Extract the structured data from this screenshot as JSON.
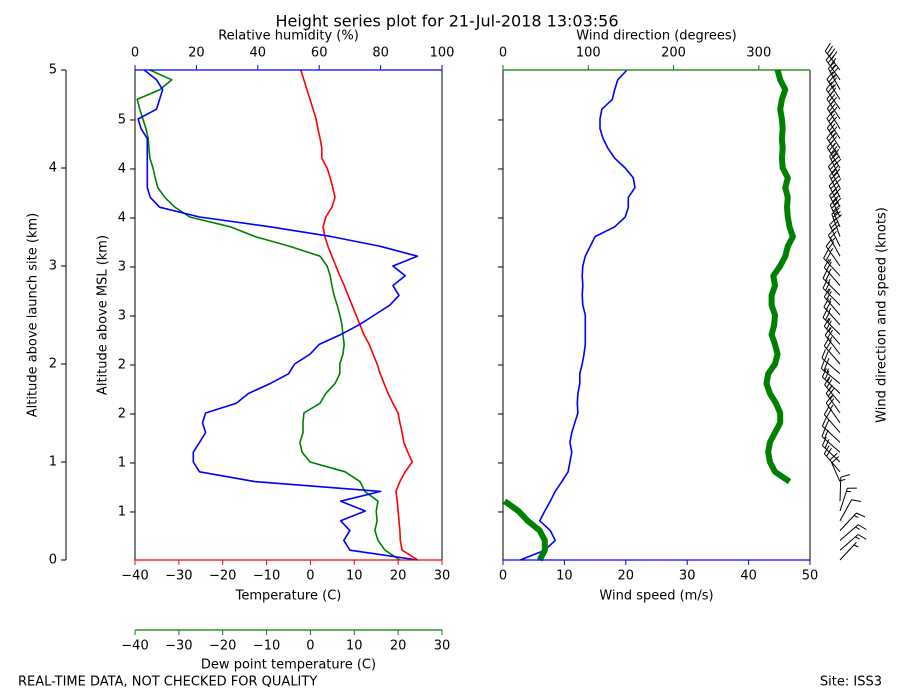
{
  "footer": {
    "left": "REAL-TIME DATA, NOT CHECKED FOR QUALITY",
    "right": "Site: ISS3"
  },
  "chart_data": [
    {
      "type": "line",
      "title": "Height series plot for 21-Jul-2018 13:03:56",
      "y": [
        0,
        0.1,
        0.2,
        0.3,
        0.4,
        0.5,
        0.6,
        0.7,
        0.8,
        0.9,
        1,
        1.1,
        1.2,
        1.3,
        1.4,
        1.5,
        1.6,
        1.7,
        1.8,
        1.9,
        2,
        2.1,
        2.2,
        2.3,
        2.4,
        2.5,
        2.6,
        2.7,
        2.8,
        2.9,
        3,
        3.1,
        3.2,
        3.3,
        3.4,
        3.5,
        3.6,
        3.7,
        3.8,
        3.9,
        4,
        4.1,
        4.2,
        4.3,
        4.4,
        4.5,
        4.6,
        4.7,
        4.8,
        4.9,
        5
      ],
      "series": [
        {
          "color": "#ff0000",
          "axis": "x",
          "values": [
            24.5,
            20.9,
            20.5,
            20.4,
            20.2,
            20.0,
            19.8,
            19.5,
            20.4,
            21.6,
            23.2,
            22.2,
            21.3,
            20.9,
            20.4,
            20.0,
            18.8,
            17.7,
            16.8,
            15.9,
            15.2,
            14.3,
            13.4,
            12.2,
            11.3,
            10.4,
            9.5,
            8.6,
            7.7,
            6.7,
            5.8,
            4.9,
            4.0,
            3.3,
            2.9,
            3.5,
            4.9,
            5.6,
            5.1,
            4.5,
            3.8,
            2.6,
            2.6,
            2.2,
            1.7,
            1.3,
            0.6,
            -0.1,
            -0.8,
            -1.5,
            -2.2
          ]
        },
        {
          "color": "#008000",
          "axis": "x",
          "values": [
            20.4,
            17.0,
            15.4,
            14.7,
            15.2,
            15.0,
            15.4,
            12.4,
            11.3,
            7.9,
            -0.1,
            -1.9,
            -2.4,
            -1.7,
            -1.7,
            -1.5,
            2.2,
            3.5,
            5.6,
            6.7,
            6.7,
            7.4,
            7.7,
            7.4,
            7.2,
            6.7,
            6.1,
            5.4,
            4.9,
            4.5,
            3.8,
            2.2,
            -4.7,
            -12.6,
            -18.3,
            -27.5,
            -30.9,
            -33.2,
            -34.8,
            -35.4,
            -35.9,
            -36.6,
            -36.8,
            -37.0,
            -37.5,
            -38.2,
            -38.9,
            -39.5,
            -34.3,
            -31.6,
            -36.6
          ]
        },
        {
          "color": "#0000ff",
          "axis": "x2",
          "values": [
            92,
            70,
            68,
            70,
            67,
            75,
            67,
            80,
            39,
            21,
            19,
            19,
            21,
            23,
            22,
            23,
            33,
            37,
            44,
            50,
            52,
            57,
            60,
            67,
            73,
            78,
            83,
            86,
            84,
            88,
            84,
            92,
            80,
            64,
            44,
            21,
            8,
            5,
            4,
            4,
            4,
            4,
            4,
            4,
            2,
            1,
            7,
            8,
            9,
            7,
            3
          ]
        }
      ],
      "xlim": [
        -40,
        30
      ],
      "xticks": [
        {
          "value": -40,
          "label": "−40"
        },
        {
          "value": -30,
          "label": "−30"
        },
        {
          "value": -20,
          "label": "−20"
        },
        {
          "value": -10,
          "label": "−10"
        },
        0,
        10,
        20,
        30
      ],
      "xlabel": "Temperature (C)",
      "x2lim": [
        0,
        100
      ],
      "x2ticks": [
        0,
        20,
        40,
        60,
        80,
        100
      ],
      "x2label": "Relative humidity (%)",
      "x3lim": [
        -40,
        30
      ],
      "x3ticks": [
        {
          "value": -40,
          "label": "−40"
        },
        {
          "value": -30,
          "label": "−30"
        },
        {
          "value": -20,
          "label": "−20"
        },
        {
          "value": -10,
          "label": "−10"
        },
        0,
        10,
        20,
        30
      ],
      "x3label": "Dew point temperature (C)",
      "ylim": [
        0,
        5
      ],
      "yticks": [
        0,
        1,
        2,
        3,
        4,
        5
      ],
      "ylabel": "Altitude above launch site (km)",
      "y2lim": [
        0.51,
        5.51
      ],
      "y2ticks": [
        {
          "value": 1.0,
          "label": "1"
        },
        {
          "value": 1.5,
          "label": "1"
        },
        {
          "value": 2.0,
          "label": "2"
        },
        {
          "value": 2.5,
          "label": "2"
        },
        {
          "value": 3.0,
          "label": "3"
        },
        {
          "value": 3.5,
          "label": "3"
        },
        {
          "value": 4.0,
          "label": "4"
        },
        {
          "value": 4.5,
          "label": "4"
        },
        {
          "value": 5.0,
          "label": "5"
        }
      ],
      "y2label": "Altitude above MSL (km)"
    },
    {
      "type": "line",
      "y": [
        0,
        0.1,
        0.2,
        0.3,
        0.4,
        0.5,
        0.6,
        0.7,
        0.8,
        0.9,
        1,
        1.1,
        1.2,
        1.3,
        1.4,
        1.5,
        1.6,
        1.7,
        1.8,
        1.9,
        2,
        2.1,
        2.2,
        2.3,
        2.4,
        2.5,
        2.6,
        2.7,
        2.8,
        2.9,
        3,
        3.1,
        3.2,
        3.3,
        3.4,
        3.5,
        3.6,
        3.7,
        3.8,
        3.9,
        4,
        4.1,
        4.2,
        4.3,
        4.4,
        4.5,
        4.6,
        4.7,
        4.8,
        4.9,
        5
      ],
      "series": [
        {
          "color": "#0000ff",
          "axis": "x",
          "values": [
            2.8,
            6.8,
            8.5,
            7.7,
            6.0,
            6.8,
            7.7,
            8.5,
            9.6,
            10.6,
            10.9,
            11.2,
            10.9,
            11.2,
            11.7,
            12.2,
            12.1,
            12.2,
            12.5,
            12.5,
            12.9,
            13.2,
            13.4,
            13.4,
            13.4,
            13.4,
            13.0,
            12.9,
            13.0,
            12.9,
            13.0,
            13.4,
            14.2,
            15.0,
            18.2,
            19.9,
            20.4,
            20.4,
            21.5,
            21.2,
            19.9,
            18.2,
            17.1,
            16.3,
            15.8,
            15.8,
            16.1,
            17.8,
            18.2,
            18.7,
            20.2
          ]
        },
        {
          "color": "#008000",
          "axis": "x2",
          "values": [
            43,
            49,
            49,
            43,
            29,
            18,
            2,
            null,
            336,
            319,
            313,
            311,
            313,
            319,
            325,
            325,
            320,
            313,
            309,
            311,
            319,
            322,
            319,
            315,
            318,
            319,
            315,
            315,
            319,
            317,
            325,
            331,
            334,
            340,
            336,
            334,
            333,
            334,
            331,
            334,
            328,
            327,
            328,
            327,
            328,
            327,
            325,
            327,
            331,
            325,
            322
          ]
        }
      ],
      "xlim": [
        0,
        50
      ],
      "xticks": [
        0,
        10,
        20,
        30,
        40,
        50
      ],
      "xlabel": "Wind speed (m/s)",
      "x2lim": [
        0,
        360
      ],
      "x2ticks": [
        0,
        100,
        200,
        300
      ],
      "x2label": "Wind direction (degrees)",
      "ylim": [
        0,
        5
      ],
      "barbs_label": "Wind direction and speed (knots)"
    }
  ]
}
